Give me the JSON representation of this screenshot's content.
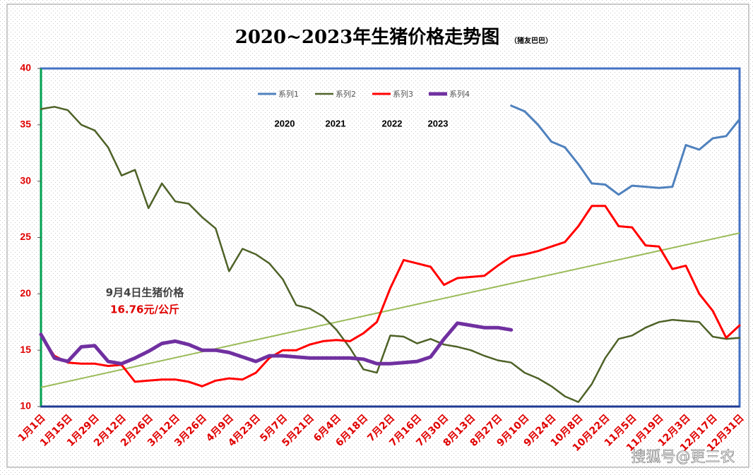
{
  "chart_data": {
    "type": "line",
    "title": "2020~2023年生猪价格走势图",
    "subtitle": "（猪友巴巴）",
    "categories": [
      "1月1日",
      null,
      "1月15日",
      null,
      "1月29日",
      null,
      "2月12日",
      null,
      "2月26日",
      null,
      "3月12日",
      null,
      "3月26日",
      null,
      "4月9日",
      null,
      "4月23日",
      null,
      "5月7日",
      null,
      "5月21日",
      null,
      "6月4日",
      null,
      "6月18日",
      null,
      "7月2日",
      null,
      "7月16日",
      null,
      "7月30日",
      null,
      "8月13日",
      null,
      "8月27日",
      null,
      "9月10日",
      null,
      "9月24日",
      null,
      "10月8日",
      null,
      "10月22日",
      null,
      "11月5日",
      null,
      "11月19日",
      null,
      "12月3日",
      null,
      "12月17日",
      null,
      "12月31日"
    ],
    "series": [
      {
        "name": "系列1",
        "year": "2020",
        "color": "#4f81bd",
        "width": 3,
        "values": [
          null,
          null,
          null,
          null,
          null,
          null,
          null,
          null,
          null,
          null,
          null,
          null,
          null,
          null,
          null,
          null,
          null,
          null,
          null,
          null,
          null,
          null,
          null,
          null,
          null,
          null,
          null,
          null,
          null,
          null,
          null,
          null,
          null,
          null,
          null,
          36.7,
          36.2,
          35.0,
          33.5,
          33.0,
          31.5,
          29.8,
          29.7,
          28.8,
          29.6,
          29.5,
          29.4,
          29.5,
          33.2,
          32.8,
          33.8,
          34.0,
          35.5
        ]
      },
      {
        "name": "系列2",
        "year": "2021",
        "color": "#4f6228",
        "width": 2.5,
        "values": [
          36.4,
          36.6,
          36.3,
          35.0,
          34.5,
          33.0,
          30.5,
          31.0,
          27.6,
          29.8,
          28.2,
          28.0,
          26.8,
          25.8,
          22.0,
          24.0,
          23.5,
          22.7,
          21.3,
          19.0,
          18.7,
          18.0,
          16.8,
          15.2,
          13.3,
          13.0,
          16.3,
          16.2,
          15.6,
          16.0,
          15.5,
          15.3,
          15.0,
          14.5,
          14.1,
          13.9,
          13.0,
          12.5,
          11.8,
          10.9,
          10.4,
          12.0,
          14.3,
          16.0,
          16.3,
          17.0,
          17.5,
          17.7,
          17.6,
          17.5,
          16.2,
          16.0,
          16.1
        ]
      },
      {
        "name": "系列3",
        "year": "2022",
        "color": "#ff0000",
        "width": 3,
        "values": [
          16.3,
          14.5,
          13.9,
          13.8,
          13.8,
          13.6,
          13.7,
          12.2,
          12.3,
          12.4,
          12.4,
          12.2,
          11.8,
          12.3,
          12.5,
          12.4,
          13.0,
          14.3,
          15.0,
          15.0,
          15.5,
          15.8,
          15.9,
          15.8,
          16.5,
          17.5,
          20.5,
          23.0,
          22.7,
          22.4,
          20.8,
          21.4,
          21.5,
          21.6,
          22.5,
          23.3,
          23.5,
          23.8,
          24.2,
          24.6,
          26.0,
          27.8,
          27.8,
          26.0,
          25.9,
          24.3,
          24.2,
          22.2,
          22.5,
          20.0,
          18.5,
          16.1,
          17.2
        ]
      },
      {
        "name": "系列4",
        "year": "2023",
        "color": "#7030a0",
        "width": 5,
        "values": [
          16.4,
          14.3,
          14.0,
          15.3,
          15.4,
          14.0,
          13.8,
          14.3,
          14.9,
          15.6,
          15.8,
          15.5,
          15.0,
          15.0,
          14.8,
          14.4,
          14.0,
          14.5,
          14.5,
          14.4,
          14.3,
          14.3,
          14.3,
          14.3,
          14.2,
          13.8,
          13.8,
          13.9,
          14.0,
          14.4,
          16.0,
          17.4,
          17.2,
          17.0,
          17.0,
          16.8,
          null,
          null,
          null,
          null,
          null,
          null,
          null,
          null,
          null,
          null,
          null,
          null,
          null,
          null,
          null,
          null,
          null
        ]
      }
    ],
    "trendline": {
      "color": "#9bbb59",
      "values": [
        11.7,
        25.4
      ]
    },
    "annotation": {
      "date": "9月4日生猪价格",
      "price": "16.76元/公斤"
    },
    "watermark": "搜狐号@更三农",
    "ylim": [
      10,
      40
    ],
    "yticks": [
      10,
      15,
      20,
      25,
      30,
      35,
      40
    ],
    "grid": false
  }
}
